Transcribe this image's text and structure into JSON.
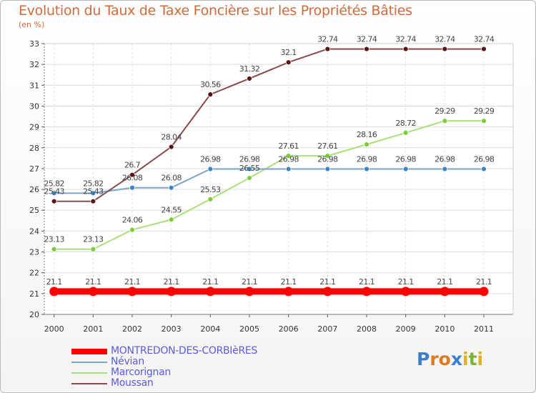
{
  "title": "Evolution du Taux de Taxe Foncière sur les Propriétés Bâties",
  "subtitle": "(en %)",
  "logo": {
    "text": "Proxiti",
    "letters": [
      "P",
      "r",
      "o",
      "x",
      "i",
      "t",
      "i"
    ],
    "colors": [
      "#3a7fd0",
      "#e07a1f",
      "#e07a1f",
      "#3a7fd0",
      "#e0b020",
      "#7ab23a",
      "#e0b020"
    ]
  },
  "chart_data": {
    "type": "line",
    "title": "Evolution du Taux de Taxe Foncière sur les Propriétés Bâties",
    "ylabel": "(en %)",
    "xlabel": "",
    "ylim": [
      20,
      33
    ],
    "y_ticks": [
      "20",
      "21",
      "22",
      "23",
      "24",
      "25",
      "26",
      "27",
      "28",
      "29",
      "30",
      "31",
      "32",
      "33"
    ],
    "categories": [
      "2000",
      "2001",
      "2002",
      "2003",
      "2004",
      "2005",
      "2006",
      "2007",
      "2008",
      "2009",
      "2010",
      "2011"
    ],
    "grid": true,
    "legend_position": "bottom-left",
    "series": [
      {
        "name": "MONTREDON-DES-CORBIèRES",
        "color": "#ff0000",
        "marker_color": "#ff0000",
        "values": [
          21.1,
          21.1,
          21.1,
          21.1,
          21.1,
          21.1,
          21.1,
          21.1,
          21.1,
          21.1,
          21.1,
          21.1
        ],
        "labels": [
          "21.1",
          "21.1",
          "21.1",
          "21.1",
          "21.1",
          "21.1",
          "21.1",
          "21.1",
          "21.1",
          "21.1",
          "21.1",
          "21.1"
        ]
      },
      {
        "name": "Névian",
        "color": "#7ba4cc",
        "marker_color": "#3a86c4",
        "values": [
          25.82,
          25.82,
          26.08,
          26.08,
          26.98,
          26.98,
          26.98,
          26.98,
          26.98,
          26.98,
          26.98,
          26.98
        ],
        "labels": [
          "25.82",
          "25.82",
          "26.08",
          "26.08",
          "26.98",
          "26.98",
          "26.98",
          "26.98",
          "26.98",
          "26.98",
          "26.98",
          "26.98"
        ]
      },
      {
        "name": "Marcorignan",
        "color": "#a9e07a",
        "marker_color": "#7ccc3a",
        "values": [
          23.13,
          23.13,
          24.06,
          24.55,
          25.53,
          26.55,
          27.61,
          27.61,
          28.16,
          28.72,
          29.29,
          29.29
        ],
        "labels": [
          "23.13",
          "23.13",
          "24.06",
          "24.55",
          "25.53",
          "26.55",
          "27.61",
          "27.61",
          "28.16",
          "28.72",
          "29.29",
          "29.29"
        ]
      },
      {
        "name": "Moussan",
        "color": "#8a4a4a",
        "marker_color": "#5a1414",
        "values": [
          25.43,
          25.43,
          26.7,
          28.04,
          30.56,
          31.32,
          32.1,
          32.74,
          32.74,
          32.74,
          32.74,
          32.74
        ],
        "labels": [
          "25.43",
          "25.43",
          "26.7",
          "28.04",
          "30.56",
          "31.32",
          "32.1",
          "32.74",
          "32.74",
          "32.74",
          "32.74",
          "32.74"
        ]
      }
    ]
  }
}
